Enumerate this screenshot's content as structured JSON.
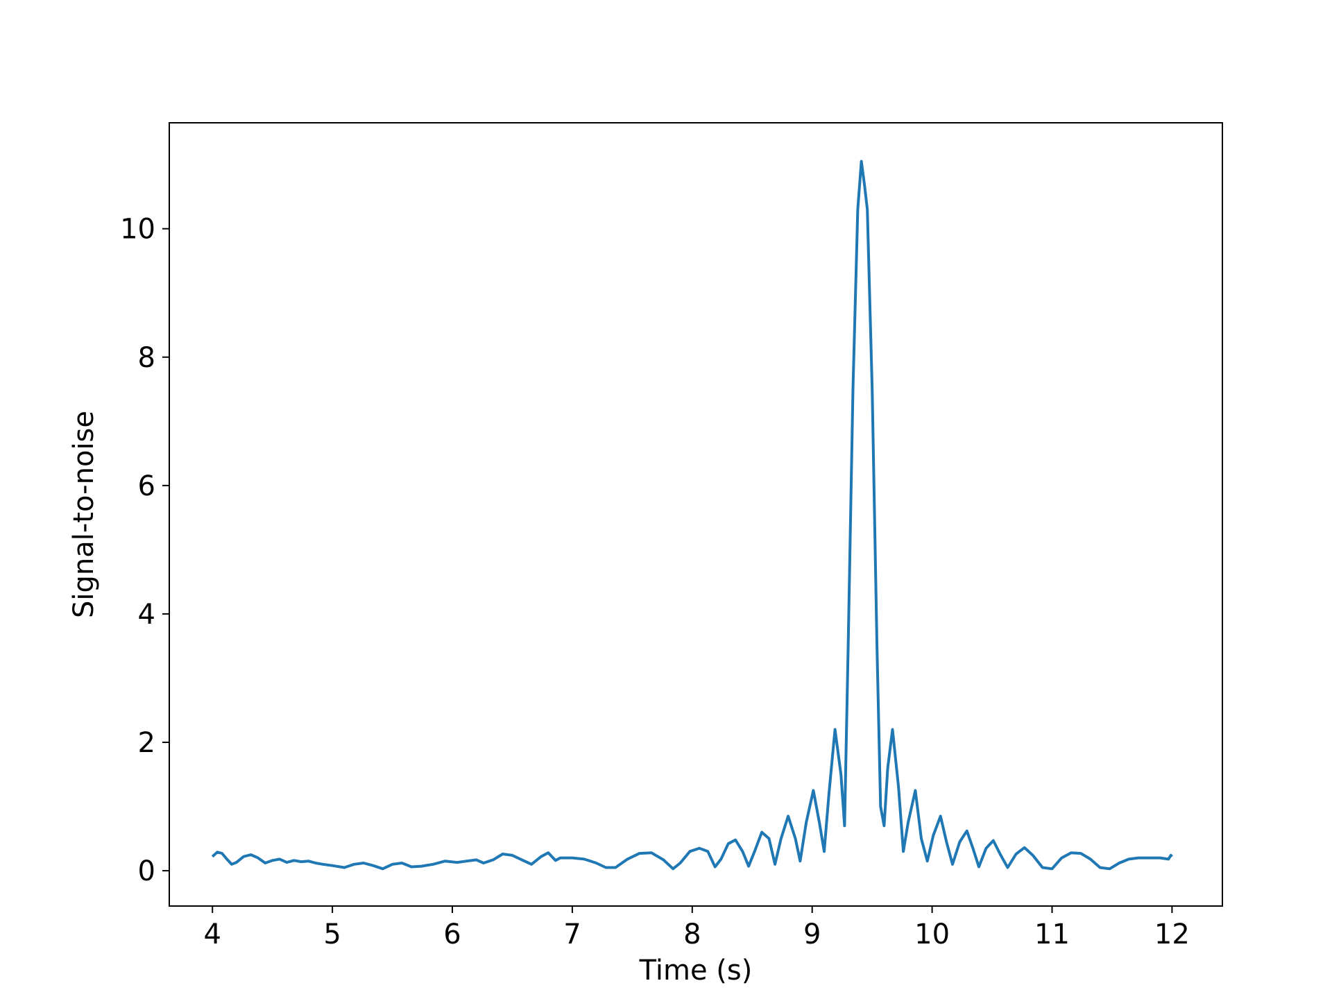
{
  "chart_data": {
    "type": "line",
    "title": "",
    "xlabel": "Time (s)",
    "ylabel": "Signal-to-noise",
    "xlim": [
      3.64,
      12.42
    ],
    "ylim": [
      -0.55,
      11.65
    ],
    "xticks": [
      4,
      5,
      6,
      7,
      8,
      9,
      10,
      11,
      12
    ],
    "xtick_labels": [
      "4",
      "5",
      "6",
      "7",
      "8",
      "9",
      "10",
      "11",
      "12"
    ],
    "yticks": [
      0,
      2,
      4,
      6,
      8,
      10
    ],
    "ytick_labels": [
      "0",
      "2",
      "4",
      "6",
      "8",
      "10"
    ],
    "grid": false,
    "legend": "none",
    "colors": {
      "line": "#1f77b4",
      "axes": "#000000",
      "background": "#ffffff"
    },
    "series": [
      {
        "x": [
          4.0,
          4.04,
          4.08,
          4.12,
          4.16,
          4.2,
          4.26,
          4.32,
          4.38,
          4.44,
          4.5,
          4.56,
          4.62,
          4.68,
          4.74,
          4.8,
          4.86,
          4.92,
          5.0,
          5.1,
          5.18,
          5.26,
          5.34,
          5.42,
          5.5,
          5.58,
          5.66,
          5.74,
          5.84,
          5.94,
          6.04,
          6.12,
          6.2,
          6.26,
          6.34,
          6.42,
          6.5,
          6.58,
          6.66,
          6.74,
          6.8,
          6.86,
          6.9,
          7.0,
          7.1,
          7.2,
          7.28,
          7.36,
          7.46,
          7.56,
          7.66,
          7.76,
          7.84,
          7.9,
          7.98,
          8.06,
          8.13,
          8.19,
          8.24,
          8.3,
          8.36,
          8.42,
          8.47,
          8.52,
          8.58,
          8.64,
          8.69,
          8.74,
          8.8,
          8.86,
          8.9,
          8.95,
          9.01,
          9.06,
          9.1,
          9.14,
          9.19,
          9.24,
          9.27,
          9.3,
          9.34,
          9.38,
          9.41,
          9.435,
          9.46,
          9.5,
          9.54,
          9.57,
          9.6,
          9.63,
          9.67,
          9.72,
          9.76,
          9.8,
          9.86,
          9.91,
          9.96,
          10.01,
          10.07,
          10.12,
          10.17,
          10.23,
          10.29,
          10.34,
          10.39,
          10.45,
          10.51,
          10.57,
          10.63,
          10.7,
          10.77,
          10.84,
          10.92,
          11.0,
          11.08,
          11.16,
          11.24,
          11.32,
          11.4,
          11.48,
          11.56,
          11.64,
          11.72,
          11.8,
          11.9,
          11.97,
          11.99,
          12.0
        ],
        "y": [
          0.22,
          0.29,
          0.27,
          0.18,
          0.1,
          0.13,
          0.22,
          0.25,
          0.2,
          0.12,
          0.16,
          0.18,
          0.13,
          0.16,
          0.14,
          0.15,
          0.12,
          0.1,
          0.08,
          0.05,
          0.1,
          0.12,
          0.08,
          0.03,
          0.1,
          0.12,
          0.06,
          0.07,
          0.1,
          0.15,
          0.13,
          0.15,
          0.17,
          0.12,
          0.17,
          0.26,
          0.24,
          0.17,
          0.1,
          0.22,
          0.28,
          0.16,
          0.2,
          0.2,
          0.18,
          0.12,
          0.05,
          0.05,
          0.18,
          0.27,
          0.28,
          0.17,
          0.03,
          0.12,
          0.3,
          0.35,
          0.3,
          0.06,
          0.18,
          0.42,
          0.48,
          0.3,
          0.07,
          0.3,
          0.6,
          0.5,
          0.1,
          0.5,
          0.85,
          0.5,
          0.15,
          0.75,
          1.25,
          0.75,
          0.3,
          1.2,
          2.2,
          1.5,
          0.7,
          3.5,
          7.5,
          10.3,
          11.05,
          10.7,
          10.3,
          7.5,
          3.5,
          1.0,
          0.7,
          1.6,
          2.2,
          1.3,
          0.3,
          0.75,
          1.25,
          0.5,
          0.15,
          0.55,
          0.85,
          0.45,
          0.1,
          0.45,
          0.62,
          0.35,
          0.06,
          0.35,
          0.47,
          0.25,
          0.05,
          0.26,
          0.36,
          0.24,
          0.05,
          0.03,
          0.2,
          0.28,
          0.27,
          0.18,
          0.05,
          0.03,
          0.12,
          0.18,
          0.2,
          0.2,
          0.2,
          0.18,
          0.24,
          0.22
        ]
      }
    ]
  }
}
